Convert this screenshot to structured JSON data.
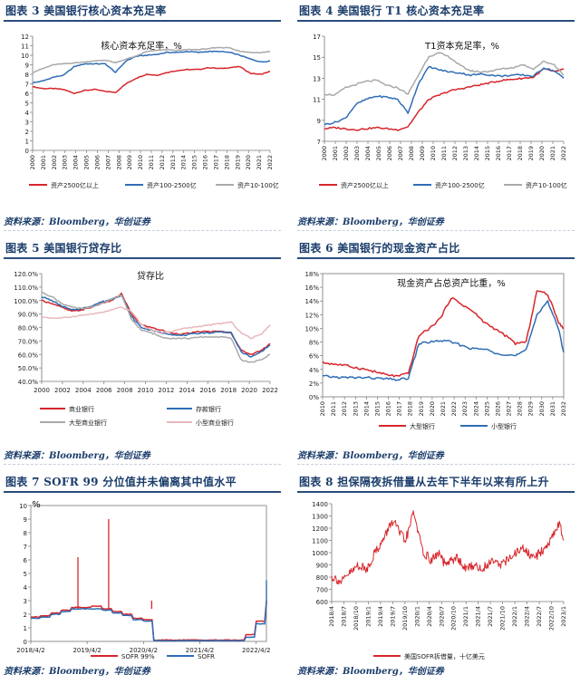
{
  "source_text": "资料来源：Bloomberg，华创证券",
  "colors": {
    "red": "#d7262b",
    "blue": "#2f6db5",
    "gray": "#a9a9a9",
    "pink": "#e8b8bd",
    "navy": "#1b3d6b",
    "axis": "#555555"
  },
  "panels": [
    {
      "title": "图表 3   美国银行核心资本充足率"
    },
    {
      "title": "图表 4   美国银行 T1 核心资本充足率"
    },
    {
      "title": "图表 5   美国银行贷存比"
    },
    {
      "title": "图表 6   美国银行的现金资产占比"
    },
    {
      "title": "图表 7   SOFR 99 分位值并未偏离其中值水平"
    },
    {
      "title": "图表 8   担保隔夜拆借量从去年下半年以来有所上升"
    }
  ],
  "chart_data": [
    {
      "type": "line",
      "title": "核心资本充足率，%",
      "ylim": [
        0,
        12
      ],
      "yticks": [
        0,
        1,
        2,
        3,
        4,
        5,
        6,
        7,
        8,
        9,
        10,
        11,
        12
      ],
      "x": [
        2000,
        2001,
        2002,
        2003,
        2004,
        2005,
        2006,
        2007,
        2008,
        2009,
        2010,
        2011,
        2012,
        2013,
        2014,
        2015,
        2016,
        2017,
        2018,
        2019,
        2020,
        2021,
        2022,
        2022.9
      ],
      "xtick_labels": [
        "2000",
        "2001",
        "2002",
        "2003",
        "2004",
        "2005",
        "2006",
        "2007",
        "2008",
        "2009",
        "2010",
        "2011",
        "2012",
        "2013",
        "2014",
        "2015",
        "2016",
        "2017",
        "2018",
        "2019",
        "2020",
        "2021",
        "2022"
      ],
      "series": [
        {
          "name": "资产2500亿以上",
          "color": "red",
          "values": [
            6.7,
            6.5,
            6.5,
            6.4,
            6.0,
            6.3,
            6.4,
            6.2,
            6.1,
            7.0,
            7.6,
            8.0,
            7.9,
            8.2,
            8.4,
            8.5,
            8.5,
            8.7,
            8.6,
            8.7,
            8.8,
            8.1,
            8.0,
            8.3
          ]
        },
        {
          "name": "资产100-2500亿",
          "color": "blue",
          "values": [
            7.1,
            7.3,
            7.7,
            7.9,
            8.8,
            9.1,
            9.1,
            9.1,
            8.2,
            9.4,
            9.9,
            10.0,
            10.1,
            10.3,
            10.3,
            10.4,
            10.3,
            10.4,
            10.4,
            10.3,
            10.0,
            9.6,
            9.3,
            9.4
          ]
        },
        {
          "name": "资产10-100亿",
          "color": "gray",
          "values": [
            8.2,
            8.6,
            9.0,
            9.1,
            9.2,
            9.3,
            9.4,
            9.5,
            9.2,
            9.6,
            9.9,
            10.4,
            10.5,
            10.6,
            10.5,
            10.6,
            10.6,
            10.7,
            10.8,
            10.8,
            10.4,
            10.3,
            10.3,
            10.4
          ]
        }
      ]
    },
    {
      "type": "line",
      "title": "T1资本充足率，%",
      "ylim": [
        7,
        17
      ],
      "yticks": [
        7,
        9,
        11,
        13,
        15,
        17
      ],
      "x": [
        2000,
        2001,
        2002,
        2003,
        2004,
        2005,
        2006,
        2007,
        2008,
        2009,
        2010,
        2011,
        2012,
        2013,
        2014,
        2015,
        2016,
        2017,
        2018,
        2019,
        2020,
        2021,
        2022,
        2022.9
      ],
      "xtick_labels": [
        "2000",
        "2001",
        "2002",
        "2003",
        "2004",
        "2005",
        "2006",
        "2007",
        "2008",
        "2009",
        "2010",
        "2011",
        "2012",
        "2013",
        "2014",
        "2015",
        "2016",
        "2017",
        "2018",
        "2019",
        "2020",
        "2021",
        "2022"
      ],
      "series": [
        {
          "name": "资产2500亿以上",
          "color": "red",
          "values": [
            8.2,
            8.3,
            8.2,
            8.1,
            8.2,
            8.3,
            8.2,
            8.1,
            8.4,
            9.8,
            11.0,
            11.4,
            11.8,
            12.0,
            12.2,
            12.4,
            12.6,
            12.8,
            12.9,
            13.0,
            13.1,
            13.9,
            13.6,
            13.9
          ]
        },
        {
          "name": "资产100-2500亿",
          "color": "blue",
          "values": [
            8.6,
            8.8,
            9.2,
            10.5,
            11.0,
            11.3,
            11.2,
            11.0,
            9.7,
            12.5,
            14.1,
            13.8,
            13.6,
            13.5,
            13.3,
            13.4,
            13.3,
            13.2,
            13.3,
            13.3,
            13.2,
            14.0,
            13.7,
            13.0
          ]
        },
        {
          "name": "资产10-100亿",
          "color": "gray",
          "values": [
            11.5,
            11.4,
            12.1,
            12.4,
            12.7,
            12.8,
            12.3,
            12.1,
            11.5,
            13.3,
            15.1,
            15.4,
            15.0,
            14.2,
            13.7,
            13.6,
            13.7,
            13.9,
            14.0,
            14.3,
            13.9,
            14.6,
            14.3,
            13.3
          ]
        }
      ]
    },
    {
      "type": "line",
      "title": "贷存比",
      "ylim": [
        40,
        120
      ],
      "yticks": [
        40,
        50,
        60,
        70,
        80,
        90,
        100,
        110,
        120
      ],
      "ytick_labels": [
        "40.0%",
        "50.0%",
        "60.0%",
        "70.0%",
        "80.0%",
        "90.0%",
        "100.0%",
        "110.0%",
        "120.0%"
      ],
      "x": [
        2000,
        2001,
        2002,
        2003,
        2004,
        2005,
        2006,
        2007,
        2008,
        2009,
        2010,
        2011,
        2012,
        2013,
        2014,
        2015,
        2016,
        2017,
        2018,
        2019,
        2020,
        2021,
        2022,
        2022.9
      ],
      "xtick_labels": [
        "2000",
        "2002",
        "2004",
        "2006",
        "2008",
        "2010",
        "2012",
        "2014",
        "2016",
        "2018",
        "2020",
        "2022"
      ],
      "series": [
        {
          "name": "商业银行",
          "color": "red",
          "values": [
            100,
            98,
            95,
            92,
            93,
            95,
            98,
            100,
            105,
            90,
            82,
            80,
            78,
            76,
            75,
            76,
            77,
            77,
            77,
            76,
            63,
            60,
            63,
            68
          ]
        },
        {
          "name": "存款银行",
          "color": "blue",
          "values": [
            103,
            100,
            96,
            93,
            94,
            96,
            99,
            101,
            104,
            88,
            80,
            78,
            76,
            75,
            74,
            75,
            76,
            76,
            77,
            76,
            62,
            58,
            62,
            67
          ]
        },
        {
          "name": "大型商业银行",
          "color": "gray",
          "values": [
            106,
            103,
            98,
            95,
            94,
            95,
            98,
            101,
            104,
            86,
            78,
            76,
            73,
            72,
            72,
            72,
            73,
            73,
            73,
            72,
            56,
            54,
            56,
            60
          ]
        },
        {
          "name": "小型商业银行",
          "color": "pink",
          "values": [
            88,
            87,
            87,
            88,
            89,
            90,
            91,
            93,
            95,
            92,
            82,
            78,
            76,
            77,
            79,
            80,
            81,
            82,
            83,
            84,
            76,
            72,
            75,
            82
          ]
        }
      ]
    },
    {
      "type": "line",
      "title": "现金资产占总资产比重，%",
      "ylim": [
        0,
        18
      ],
      "yticks": [
        0,
        2,
        4,
        6,
        8,
        10,
        12,
        14,
        16,
        18
      ],
      "ytick_labels": [
        "0%",
        "2%",
        "4%",
        "6%",
        "8%",
        "10%",
        "12%",
        "14%",
        "16%",
        "18%"
      ],
      "x": [
        2010,
        2011,
        2012,
        2013,
        2014,
        2015,
        2016,
        2017,
        2018,
        2019,
        2020,
        2021,
        2022,
        2023,
        2024,
        2025,
        2026,
        2027,
        2028,
        2029,
        2030,
        2031,
        2032,
        2032.5
      ],
      "xtick_labels": [
        "2010",
        "2011",
        "2012",
        "2013",
        "2014",
        "2015",
        "2016",
        "2017",
        "2018",
        "2019",
        "2020",
        "2021",
        "2022",
        "2023",
        "2024",
        "2025",
        "2026",
        "2027",
        "2028",
        "2029",
        "2030",
        "2031",
        "2032"
      ],
      "series": [
        {
          "name": "大型银行",
          "color": "red",
          "values": [
            5.0,
            4.8,
            4.6,
            4.3,
            4.0,
            3.6,
            3.2,
            3.0,
            3.4,
            9.0,
            10.0,
            11.5,
            14.5,
            13.5,
            12.5,
            11.0,
            10.0,
            9.0,
            7.8,
            8.0,
            15.5,
            15.0,
            11.0,
            10.0
          ]
        },
        {
          "name": "小型银行",
          "color": "blue",
          "values": [
            3.0,
            2.9,
            2.8,
            2.8,
            2.8,
            2.7,
            2.6,
            2.5,
            2.7,
            7.8,
            8.0,
            8.2,
            8.0,
            7.5,
            7.0,
            7.0,
            6.5,
            6.2,
            6.0,
            6.8,
            12.0,
            14.0,
            10.0,
            6.5
          ]
        }
      ]
    },
    {
      "type": "line",
      "title": "%",
      "ylim": [
        0,
        10
      ],
      "yticks": [
        0,
        1,
        2,
        3,
        4,
        5,
        6,
        7,
        8,
        9,
        10
      ],
      "x": [
        0,
        1,
        2,
        3,
        4,
        5,
        6,
        7,
        8,
        9,
        10,
        11,
        12,
        13,
        14,
        15,
        16,
        17,
        18,
        19,
        20,
        21,
        22,
        23
      ],
      "xtick_labels": [
        "2018/4/2",
        "2019/4/2",
        "2020/4/2",
        "2021/4/2",
        "2022/4/2"
      ],
      "xtick_pos": [
        0,
        5.5,
        11,
        16.5,
        22
      ],
      "series": [
        {
          "name": "SOFR 99%",
          "color": "red",
          "values": [
            1.8,
            1.9,
            2.1,
            2.3,
            2.5,
            2.5,
            2.6,
            2.4,
            2.2,
            2.0,
            1.7,
            1.6,
            0.1,
            0.1,
            0.1,
            0.1,
            0.1,
            0.1,
            0.1,
            0.1,
            0.1,
            0.5,
            1.5,
            3.0
          ]
        },
        {
          "name": "SOFR",
          "color": "blue",
          "values": [
            1.7,
            1.8,
            2.0,
            2.2,
            2.4,
            2.4,
            2.4,
            2.3,
            2.1,
            1.9,
            1.6,
            1.5,
            0.05,
            0.05,
            0.05,
            0.05,
            0.05,
            0.05,
            0.05,
            0.05,
            0.05,
            0.3,
            1.3,
            2.8
          ]
        }
      ],
      "spikes": [
        {
          "x": 4.6,
          "y": 6.2
        },
        {
          "x": 7.6,
          "y": 9.0
        },
        {
          "x": 11.8,
          "y": 3.0
        }
      ],
      "tail": [
        3.8,
        4.3,
        4.5
      ]
    },
    {
      "type": "line",
      "title": "",
      "ylim": [
        600,
        1400
      ],
      "yticks": [
        600,
        700,
        800,
        900,
        1000,
        1100,
        1200,
        1300,
        1400
      ],
      "x": [
        0,
        1,
        2,
        3,
        4,
        5,
        6,
        7,
        8,
        9,
        10,
        11,
        12,
        13,
        14,
        15,
        16,
        17,
        18,
        19,
        20,
        21,
        22,
        23,
        24,
        25,
        26,
        27,
        28,
        29,
        30,
        31,
        32,
        33,
        34,
        35,
        36,
        37,
        38,
        39,
        40,
        41,
        42,
        43,
        44,
        45,
        46,
        47,
        48,
        49,
        50,
        51,
        52,
        53,
        54
      ],
      "xtick_labels": [
        "2018/4",
        "2018/7",
        "2018/10",
        "2019/1",
        "2019/4",
        "2019/7",
        "2019/10",
        "2020/1",
        "2020/4",
        "2020/7",
        "2020/10",
        "2021/1",
        "2021/4",
        "2021/7",
        "2021/10",
        "2022/1",
        "2022/4",
        "2022/7",
        "2022/10",
        "2023/1"
      ],
      "series": [
        {
          "name": "美国SOFR拆借量，十亿美元",
          "color": "red",
          "values": [
            800,
            790,
            760,
            780,
            830,
            850,
            900,
            880,
            860,
            920,
            1000,
            1050,
            1100,
            1180,
            1260,
            1220,
            1150,
            1100,
            1180,
            1340,
            1200,
            1020,
            980,
            940,
            960,
            1000,
            920,
            900,
            940,
            960,
            920,
            870,
            880,
            900,
            880,
            860,
            900,
            920,
            960,
            900,
            920,
            940,
            960,
            1000,
            1040,
            1020,
            980,
            960,
            980,
            1020,
            1060,
            1100,
            1180,
            1250,
            1100
          ]
        }
      ]
    }
  ]
}
